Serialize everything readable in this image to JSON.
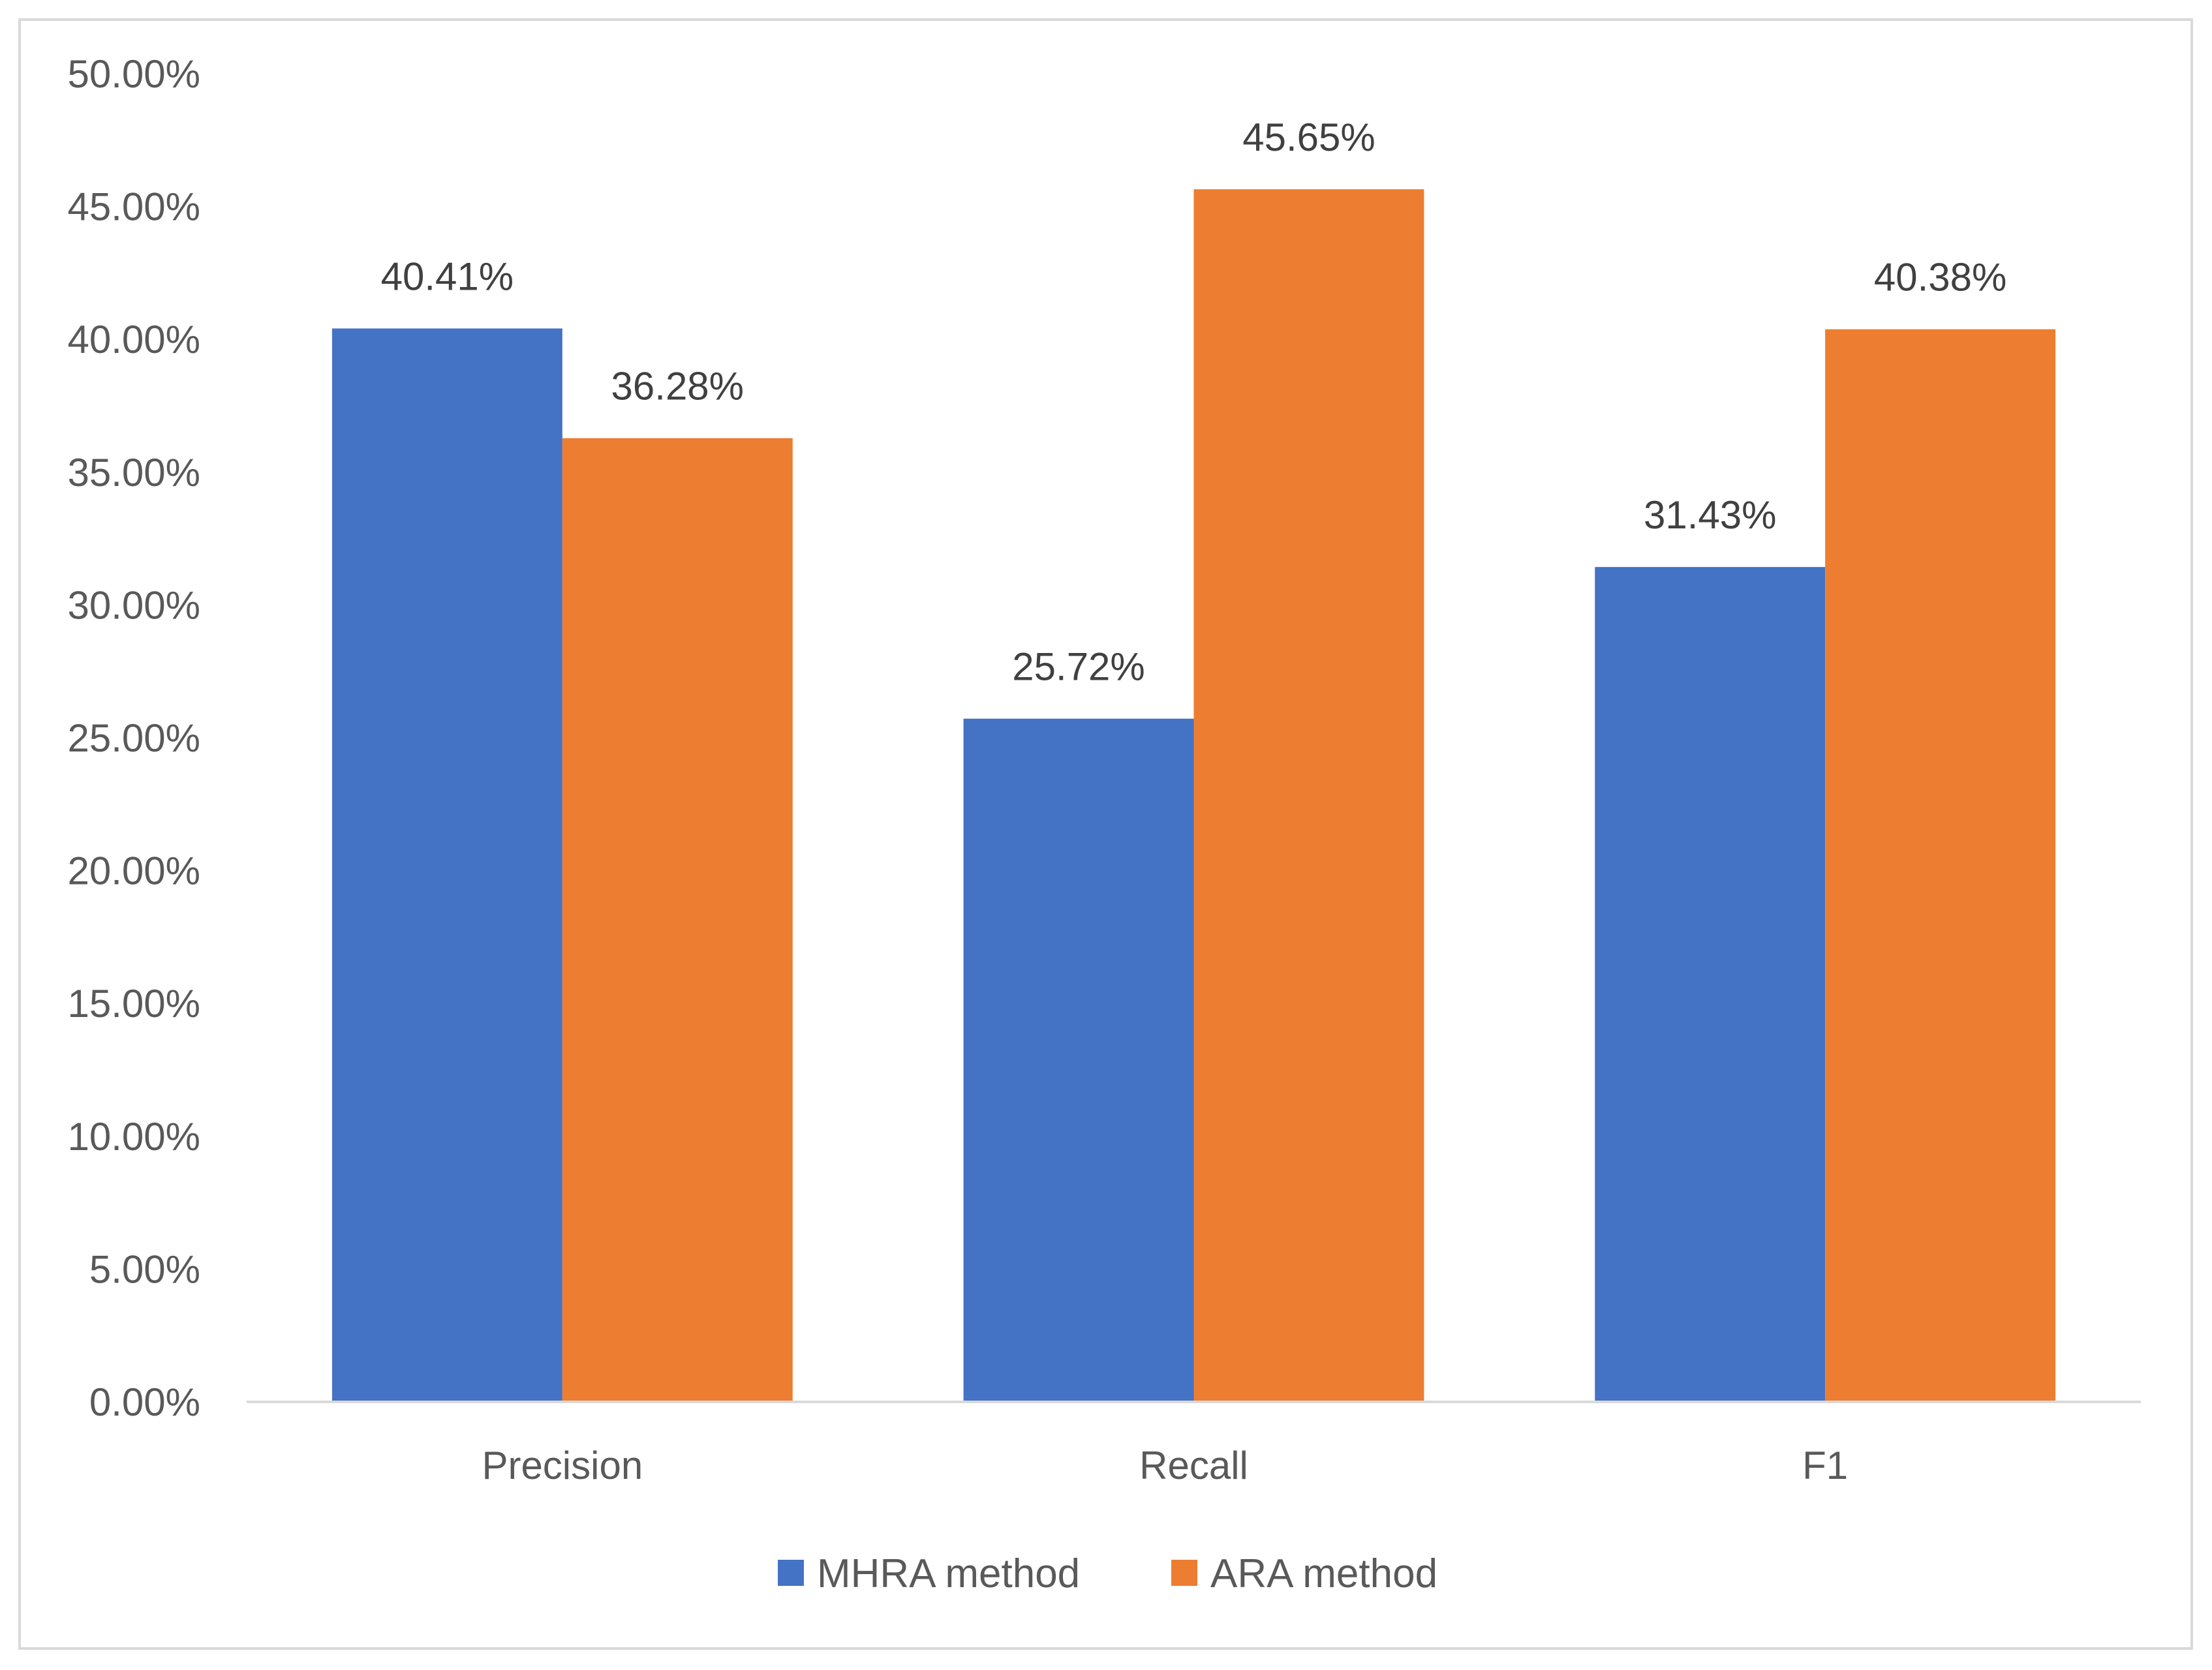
{
  "chart_data": {
    "type": "bar",
    "categories": [
      "Precision",
      "Recall",
      "F1"
    ],
    "series": [
      {
        "name": "MHRA method",
        "color": "#4472C4",
        "values": [
          40.41,
          25.72,
          31.43
        ],
        "labels": [
          "40.41%",
          "25.72%",
          "31.43%"
        ]
      },
      {
        "name": "ARA method",
        "color": "#ED7D31",
        "values": [
          36.28,
          45.65,
          40.38
        ],
        "labels": [
          "36.28%",
          "45.65%",
          "40.38%"
        ]
      }
    ],
    "ylim": [
      0,
      50
    ],
    "y_ticks": [
      "0.00%",
      "5.00%",
      "10.00%",
      "15.00%",
      "20.00%",
      "25.00%",
      "30.00%",
      "35.00%",
      "40.00%",
      "45.00%",
      "50.00%"
    ],
    "grid": false,
    "legend_position": "bottom"
  },
  "colors": {
    "text": "#595959",
    "axis": "#D9D9D9",
    "border": "#D9D9D9",
    "background": "#FFFFFF"
  }
}
